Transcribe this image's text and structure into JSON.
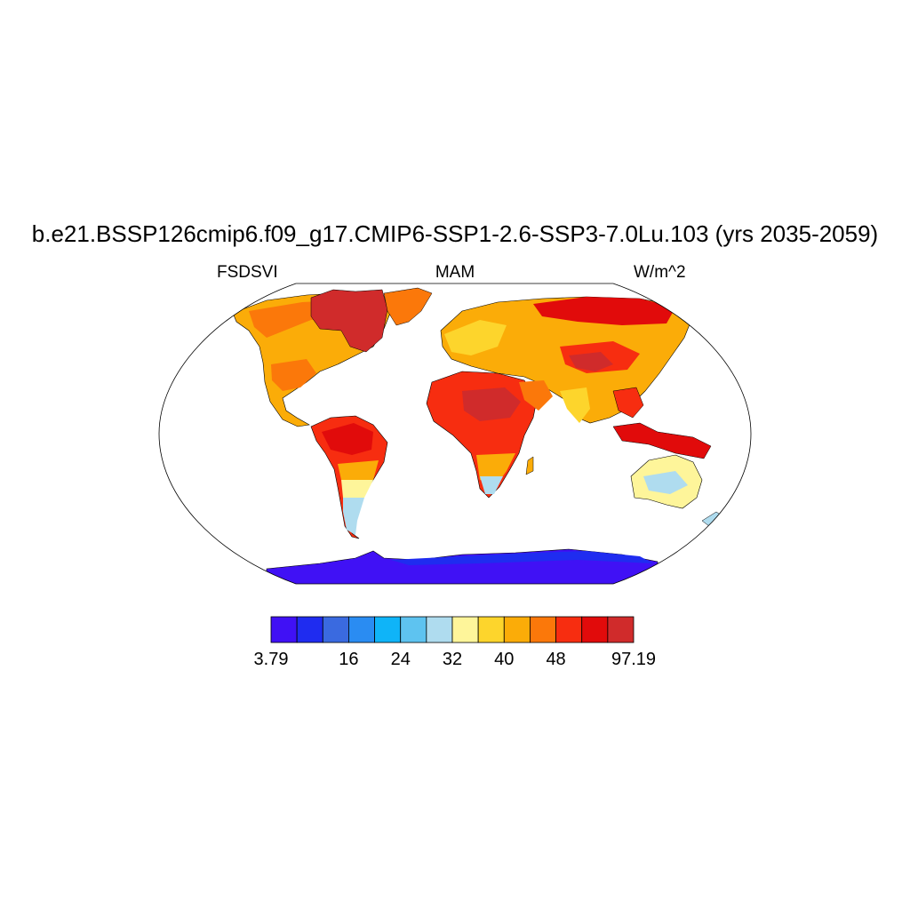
{
  "title": "b.e21.BSSP126cmip6.f09_g17.CMIP6-SSP1-2.6-SSP3-7.0Lu.103 (yrs 2035-2059)",
  "left_label": "FSDSVI",
  "center_label": "MAM",
  "right_label": "W/m^2",
  "colorbar": {
    "colors": [
      "#4011f5",
      "#1f2cf0",
      "#3a6ae0",
      "#2a8cf2",
      "#0fb4f8",
      "#5ec3f0",
      "#afdcef",
      "#fef59a",
      "#fdd52c",
      "#fbac08",
      "#fb780a",
      "#f72d10",
      "#e10b0b",
      "#d02b2b"
    ],
    "labels": [
      "3.79",
      "16",
      "24",
      "32",
      "40",
      "48",
      "97.19"
    ],
    "label_boundaries": [
      0,
      3,
      5,
      7,
      9,
      11,
      14
    ]
  },
  "colors": {
    "ocean": "#ffffff",
    "coastline": "#000000"
  }
}
